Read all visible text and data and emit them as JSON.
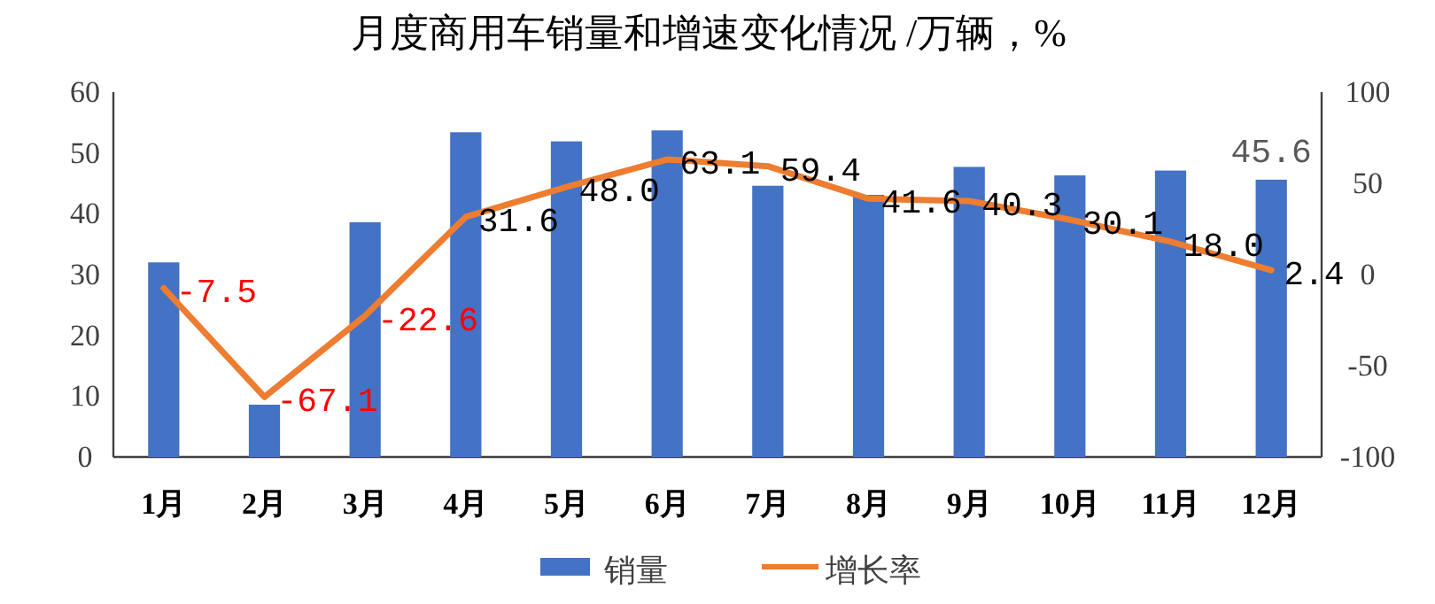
{
  "chart_data": {
    "type": "bar",
    "title": "月度商用车销量和增速变化情况  /万辆，%",
    "categories": [
      "1月",
      "2月",
      "3月",
      "4月",
      "5月",
      "6月",
      "7月",
      "8月",
      "9月",
      "10月",
      "11月",
      "12月"
    ],
    "series": [
      {
        "name": "销量",
        "type": "bar",
        "color": "#4472c4",
        "values": [
          32.0,
          8.6,
          38.6,
          53.4,
          51.9,
          53.7,
          44.6,
          43.1,
          47.7,
          46.3,
          47.1,
          45.6
        ],
        "value_labels": [
          null,
          null,
          null,
          null,
          null,
          null,
          null,
          null,
          null,
          null,
          null,
          "45.6"
        ]
      },
      {
        "name": "增长率",
        "type": "line",
        "axis": "y2",
        "color": "#ed7d31",
        "values": [
          -7.5,
          -67.1,
          -22.6,
          31.6,
          48.0,
          63.1,
          59.4,
          41.6,
          40.3,
          30.1,
          18.0,
          2.4
        ],
        "value_labels": [
          "-7.5",
          "-67.1",
          "-22.6",
          "31.6",
          "48.0",
          "63.1",
          "59.4",
          "41.6",
          "40.3",
          "30.1",
          "18.0",
          "2.4"
        ]
      }
    ],
    "ylim": [
      0,
      60
    ],
    "yticks": [
      0,
      10,
      20,
      30,
      40,
      50,
      60
    ],
    "y2lim": [
      -100,
      100
    ],
    "y2ticks": [
      -100,
      -50,
      0,
      50,
      100
    ],
    "grid": false,
    "legend": "bottom"
  }
}
